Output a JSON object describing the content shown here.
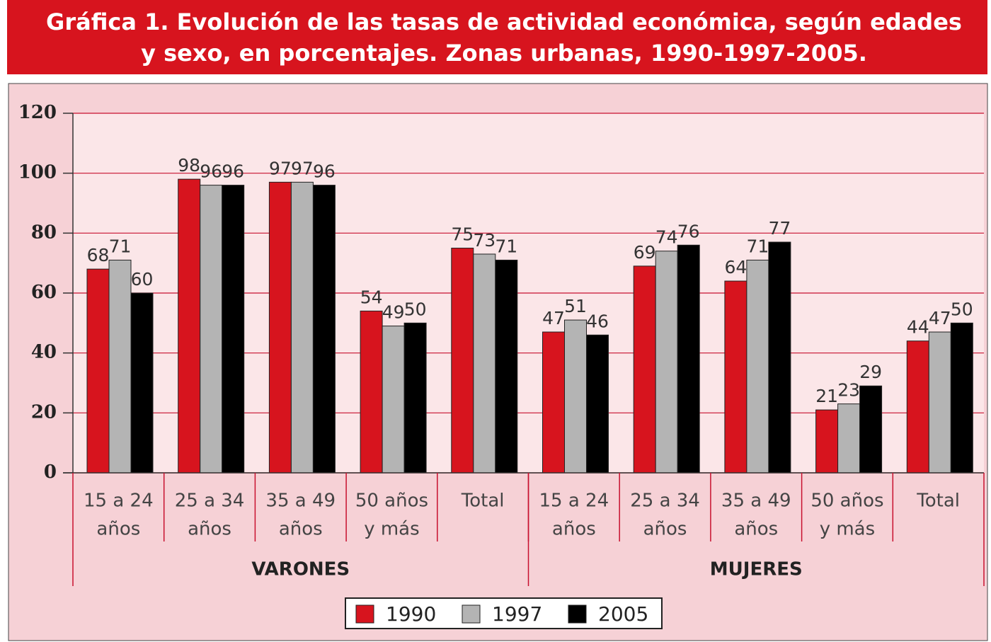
{
  "chart_data": {
    "type": "bar",
    "title": [
      "Gráfica 1. Evolución de las tasas de actividad económica, según edades",
      "y sexo, en porcentajes. Zonas urbanas, 1990-1997-2005."
    ],
    "categories": [
      [
        "15 a 24",
        "años"
      ],
      [
        "25 a 34",
        "años"
      ],
      [
        "35 a 49",
        "años"
      ],
      [
        "50 años",
        "y más"
      ],
      [
        "Total"
      ],
      [
        "15 a 24",
        "años"
      ],
      [
        "25 a 34",
        "años"
      ],
      [
        "35 a 49",
        "años"
      ],
      [
        "50 años",
        "y más"
      ],
      [
        "Total"
      ]
    ],
    "groups": [
      {
        "name": "VARONES",
        "count": 5
      },
      {
        "name": "MUJERES",
        "count": 5
      }
    ],
    "series": [
      {
        "name": "1990",
        "color": "#d7141e",
        "values": [
          68,
          98,
          97,
          54,
          75,
          47,
          69,
          64,
          21,
          44
        ]
      },
      {
        "name": "1997",
        "color": "#b4b4b4",
        "values": [
          71,
          96,
          97,
          49,
          73,
          51,
          74,
          71,
          23,
          47
        ]
      },
      {
        "name": "2005",
        "color": "#000000",
        "values": [
          60,
          96,
          96,
          50,
          71,
          46,
          76,
          77,
          29,
          50
        ]
      }
    ],
    "ylim": [
      0,
      120
    ],
    "yticks": [
      0,
      20,
      40,
      60,
      80,
      100,
      120
    ],
    "grid": true,
    "legend": "bottom"
  }
}
